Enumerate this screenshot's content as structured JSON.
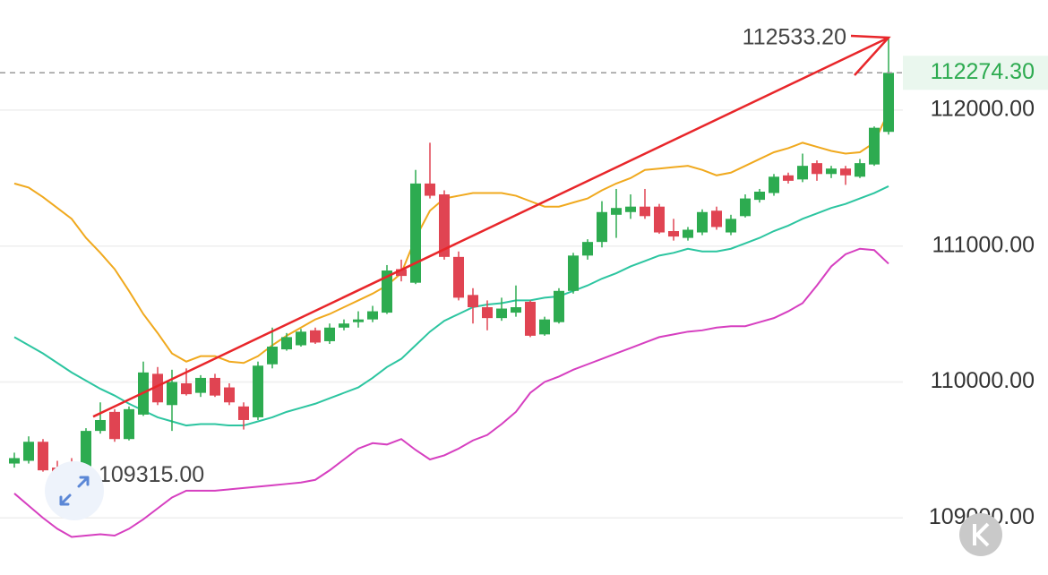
{
  "chart_data": {
    "type": "candlestick",
    "ylim": [
      108580,
      112810
    ],
    "yticks": [
      {
        "value": 109000,
        "label": "109000.00"
      },
      {
        "value": 110000,
        "label": "110000.00"
      },
      {
        "value": 111000,
        "label": "111000.00"
      },
      {
        "value": 112000,
        "label": "112000.00"
      }
    ],
    "grid": true,
    "up_color": "#2dab50",
    "down_color": "#e04452",
    "candles": {
      "open": [
        109400,
        109420,
        109560,
        109370,
        109380,
        109380,
        109640,
        109780,
        109580,
        109760,
        110060,
        109830,
        109990,
        109920,
        110030,
        109960,
        109820,
        109740,
        110130,
        110240,
        110270,
        110380,
        110300,
        110400,
        110440,
        110460,
        110510,
        110830,
        110730,
        111460,
        111380,
        110920,
        110640,
        110550,
        110470,
        110510,
        110590,
        110350,
        110440,
        110670,
        110930,
        111030,
        111230,
        111250,
        111290,
        111290,
        111110,
        111060,
        111100,
        111260,
        111100,
        111220,
        111340,
        111390,
        111520,
        111490,
        111610,
        111530,
        111570,
        111510,
        111600,
        111840
      ],
      "high": [
        109480,
        109600,
        109580,
        109420,
        109440,
        109660,
        109850,
        109800,
        109820,
        110150,
        110110,
        110090,
        110100,
        110050,
        110060,
        109990,
        109850,
        110150,
        110400,
        110360,
        110390,
        110400,
        110430,
        110460,
        110520,
        110560,
        110860,
        110900,
        111560,
        111760,
        111410,
        110960,
        110690,
        110600,
        110620,
        110710,
        110600,
        110480,
        110690,
        110950,
        111050,
        111330,
        111420,
        111380,
        111420,
        111310,
        111200,
        111140,
        111270,
        111290,
        111230,
        111380,
        111420,
        111530,
        111540,
        111680,
        111630,
        111590,
        111590,
        111640,
        111880,
        112533.2
      ],
      "low": [
        109370,
        109400,
        109340,
        109315,
        109330,
        109370,
        109620,
        109560,
        109570,
        109750,
        109830,
        109640,
        109900,
        109890,
        109890,
        109830,
        109650,
        109720,
        110100,
        110230,
        110260,
        110280,
        110280,
        110380,
        110400,
        110440,
        110500,
        110740,
        110720,
        111350,
        110900,
        110600,
        110430,
        110380,
        110450,
        110480,
        110330,
        110340,
        110430,
        110650,
        110900,
        110990,
        111060,
        111200,
        111200,
        111090,
        111040,
        111040,
        111080,
        111120,
        111080,
        111210,
        111320,
        111370,
        111460,
        111470,
        111480,
        111500,
        111450,
        111500,
        111590,
        111820
      ],
      "close": [
        109440,
        109560,
        109350,
        109340,
        109360,
        109640,
        109720,
        109580,
        109800,
        110070,
        109850,
        110000,
        109910,
        110030,
        109900,
        109850,
        109720,
        110120,
        110260,
        110330,
        110370,
        110290,
        110400,
        110430,
        110460,
        110520,
        110820,
        110780,
        111460,
        111370,
        110920,
        110620,
        110550,
        110470,
        110540,
        110550,
        110340,
        110460,
        110670,
        110930,
        111030,
        111250,
        111280,
        111290,
        111220,
        111100,
        111070,
        111120,
        111250,
        111140,
        111200,
        111350,
        111400,
        111510,
        111480,
        111590,
        111530,
        111570,
        111520,
        111610,
        111870,
        112274.3
      ]
    },
    "series": [
      {
        "color": "#f0a91e",
        "values": [
          111460,
          111430,
          111360,
          111280,
          111200,
          111060,
          110950,
          110830,
          110670,
          110500,
          110360,
          110210,
          110150,
          110190,
          110190,
          110150,
          110140,
          110190,
          110270,
          110340,
          110400,
          110460,
          110500,
          110550,
          110600,
          110650,
          110710,
          110800,
          111060,
          111260,
          111350,
          111370,
          111390,
          111390,
          111390,
          111370,
          111330,
          111290,
          111290,
          111320,
          111350,
          111410,
          111460,
          111500,
          111560,
          111570,
          111580,
          111590,
          111560,
          111520,
          111540,
          111590,
          111640,
          111690,
          111720,
          111760,
          111730,
          111700,
          111680,
          111690,
          111760,
          111990
        ]
      },
      {
        "color": "#2cc5a0",
        "values": [
          110330,
          110270,
          110210,
          110140,
          110070,
          110010,
          109950,
          109900,
          109840,
          109790,
          109740,
          109710,
          109680,
          109690,
          109690,
          109680,
          109680,
          109710,
          109740,
          109780,
          109810,
          109840,
          109880,
          109920,
          109960,
          110030,
          110110,
          110170,
          110270,
          110370,
          110450,
          110500,
          110550,
          110570,
          110580,
          110600,
          110600,
          110620,
          110630,
          110670,
          110710,
          110760,
          110800,
          110850,
          110890,
          110930,
          110950,
          110980,
          110960,
          110960,
          110980,
          111020,
          111060,
          111110,
          111150,
          111200,
          111240,
          111280,
          111310,
          111350,
          111390,
          111440
        ]
      },
      {
        "color": "#d63fc0",
        "values": [
          109180,
          109090,
          109000,
          108920,
          108860,
          108870,
          108880,
          108870,
          108920,
          108990,
          109070,
          109150,
          109200,
          109200,
          109200,
          109210,
          109220,
          109230,
          109240,
          109250,
          109260,
          109280,
          109350,
          109430,
          109510,
          109550,
          109540,
          109580,
          109500,
          109430,
          109460,
          109510,
          109570,
          109610,
          109690,
          109780,
          109920,
          110000,
          110040,
          110090,
          110130,
          110170,
          110210,
          110250,
          110290,
          110330,
          110350,
          110370,
          110380,
          110400,
          110410,
          110410,
          110440,
          110470,
          110520,
          110580,
          110710,
          110850,
          110940,
          110980,
          110970,
          110870
        ]
      }
    ],
    "max_label": {
      "value": 112533.2,
      "label": "112533.20"
    },
    "min_label": {
      "value": 109315,
      "label": "109315.00"
    },
    "last_price": {
      "value": 112274.3,
      "label": "112274.30"
    },
    "trend_arrow": {
      "start": [
        5.5,
        109745
      ],
      "end": [
        61,
        112533.2
      ],
      "color": "#e8262a"
    }
  }
}
